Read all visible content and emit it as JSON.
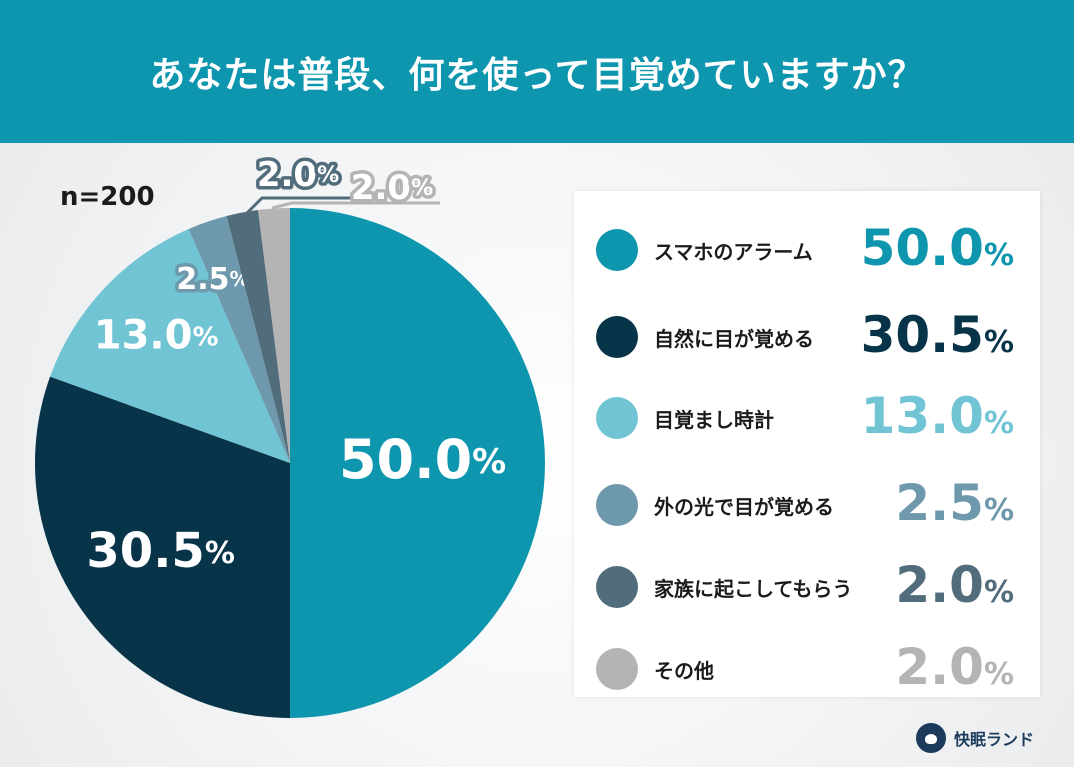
{
  "title": "あなたは普段、何を使って目覚めていますか？",
  "sample_size": "n=200",
  "brand": "快眠ランド",
  "colors": {
    "header": "#0e96ae",
    "alarm": "#0e96ae",
    "natural": "#083449",
    "clock": "#71c4d4",
    "light": "#6e98ab",
    "family": "#516d7b",
    "other": "#b4b4b4"
  },
  "chart_data": {
    "type": "pie",
    "title": "あなたは普段、何を使って目覚めていますか？",
    "slices": [
      {
        "label": "スマホのアラーム",
        "value": 50.0,
        "display": "50.0",
        "color": "#0e96ae"
      },
      {
        "label": "自然に目が覚める",
        "value": 30.5,
        "display": "30.5",
        "color": "#083449"
      },
      {
        "label": "目覚まし時計",
        "value": 13.0,
        "display": "13.0",
        "color": "#71c4d4"
      },
      {
        "label": "外の光で目が覚める",
        "value": 2.5,
        "display": "2.5",
        "color": "#6e98ab"
      },
      {
        "label": "家族に起こしてもらう",
        "value": 2.0,
        "display": "2.0",
        "color": "#516d7b"
      },
      {
        "label": "その他",
        "value": 2.0,
        "display": "2.0",
        "color": "#b4b4b4"
      }
    ],
    "unit": "%",
    "legend_position": "right"
  }
}
